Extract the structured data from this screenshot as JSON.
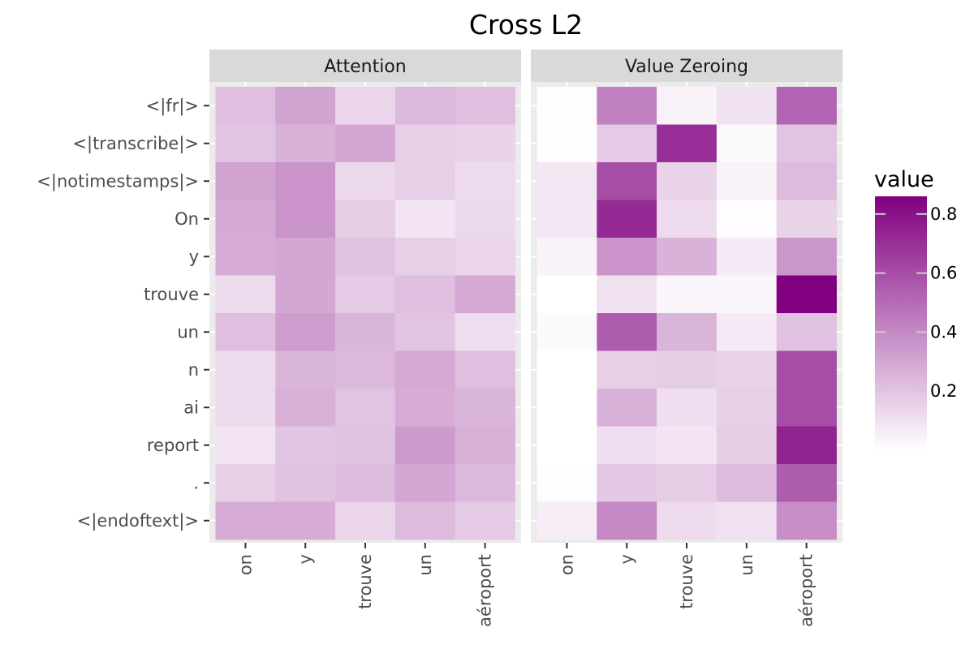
{
  "chart_data": {
    "type": "heatmap",
    "title": "Cross L2",
    "legend": {
      "title": "value",
      "ticks": [
        0.2,
        0.4,
        0.6,
        0.8
      ],
      "tick_labels": [
        "0.2",
        "0.4",
        "0.6",
        "0.8"
      ],
      "range": [
        0.0,
        0.86
      ],
      "color_low": "#ffffff",
      "color_high": "#800080",
      "position": "right"
    },
    "y_categories": [
      "<|fr|>",
      "<|transcribe|>",
      "<|notimestamps|>",
      "On",
      "y",
      "trouve",
      "un",
      "n",
      "ai",
      "report",
      ".",
      "<|endoftext|>"
    ],
    "x_categories": [
      "on",
      "y",
      "trouve",
      "un",
      "aéroport"
    ],
    "panels": [
      {
        "label": "Attention",
        "values": [
          [
            0.22,
            0.31,
            0.14,
            0.24,
            0.22
          ],
          [
            0.2,
            0.26,
            0.3,
            0.16,
            0.15
          ],
          [
            0.31,
            0.36,
            0.13,
            0.16,
            0.12
          ],
          [
            0.29,
            0.36,
            0.17,
            0.09,
            0.13
          ],
          [
            0.28,
            0.3,
            0.21,
            0.16,
            0.14
          ],
          [
            0.12,
            0.3,
            0.18,
            0.22,
            0.29
          ],
          [
            0.22,
            0.33,
            0.25,
            0.2,
            0.11
          ],
          [
            0.12,
            0.25,
            0.24,
            0.29,
            0.22
          ],
          [
            0.12,
            0.27,
            0.2,
            0.28,
            0.25
          ],
          [
            0.09,
            0.2,
            0.21,
            0.34,
            0.27
          ],
          [
            0.16,
            0.21,
            0.23,
            0.3,
            0.24
          ],
          [
            0.28,
            0.28,
            0.14,
            0.23,
            0.18
          ]
        ]
      },
      {
        "label": "Value Zeroing",
        "values": [
          [
            0.01,
            0.42,
            0.04,
            0.1,
            0.52
          ],
          [
            0.01,
            0.18,
            0.7,
            0.02,
            0.2
          ],
          [
            0.08,
            0.6,
            0.15,
            0.04,
            0.23
          ],
          [
            0.08,
            0.72,
            0.12,
            0.01,
            0.15
          ],
          [
            0.04,
            0.36,
            0.26,
            0.07,
            0.35
          ],
          [
            0.0,
            0.1,
            0.03,
            0.03,
            0.86
          ],
          [
            0.02,
            0.55,
            0.25,
            0.07,
            0.21
          ],
          [
            0.0,
            0.16,
            0.17,
            0.15,
            0.6
          ],
          [
            0.0,
            0.26,
            0.11,
            0.16,
            0.6
          ],
          [
            0.0,
            0.11,
            0.09,
            0.17,
            0.74
          ],
          [
            0.01,
            0.19,
            0.17,
            0.23,
            0.55
          ],
          [
            0.06,
            0.4,
            0.12,
            0.1,
            0.38
          ]
        ]
      }
    ]
  }
}
